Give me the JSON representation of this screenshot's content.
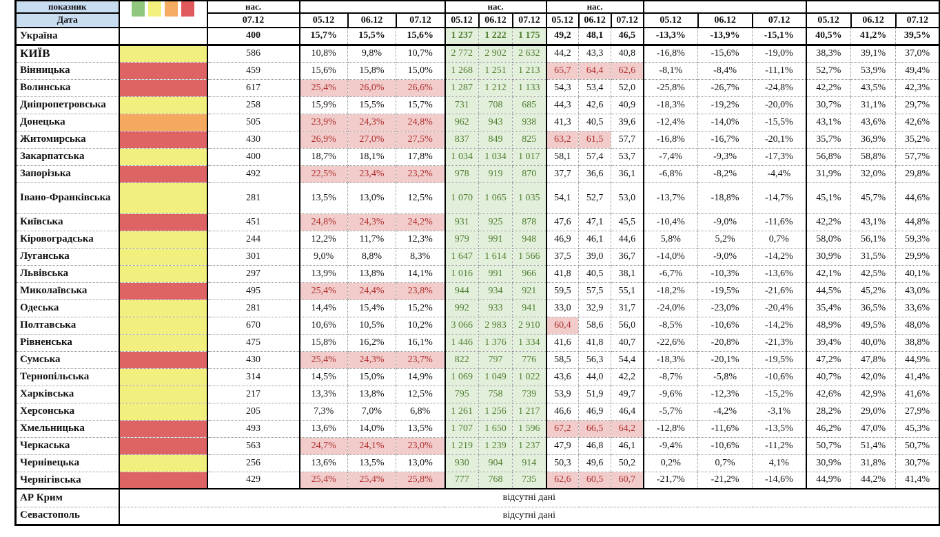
{
  "header": {
    "indicator_label": "показник",
    "date_label": "Дата",
    "nas": "нас.",
    "big_date": "07.12",
    "dates": [
      "05.12",
      "06.12",
      "07.12"
    ]
  },
  "legend_colors": {
    "green": "#8FC87D",
    "yellow": "#F4F07E",
    "orange": "#F5AC62",
    "red": "#E0595C"
  },
  "status_colors": {
    "yellow": "#F1EF7D",
    "red": "#DE6365",
    "orange": "#F5A95F",
    "highlight_pink": "#F1CCCA",
    "green_bg": "#E2EFDA",
    "header_blue": "#C9DDF1"
  },
  "no_data_text": "відсутні дані",
  "rows": [
    {
      "name": "Україна",
      "color": "white",
      "total": true,
      "big": "400",
      "p1": [
        "15,7%",
        "15,5%",
        "15,6%"
      ],
      "p1h": false,
      "gr": [
        "1 237",
        "1 222",
        "1 175"
      ],
      "mid": [
        "49,2",
        "48,1",
        "46,5"
      ],
      "midh": [
        false,
        false,
        false
      ],
      "neg": [
        "-13,3%",
        "-13,9%",
        "-15,1%"
      ],
      "last": [
        "40,5%",
        "41,2%",
        "39,5%"
      ]
    },
    {
      "name": "КИЇВ",
      "caps": true,
      "color": "yellow",
      "big": "586",
      "p1": [
        "10,8%",
        "9,8%",
        "10,7%"
      ],
      "p1h": false,
      "gr": [
        "2 772",
        "2 902",
        "2 632"
      ],
      "mid": [
        "44,2",
        "43,3",
        "40,8"
      ],
      "midh": [
        false,
        false,
        false
      ],
      "neg": [
        "-16,8%",
        "-15,6%",
        "-19,0%"
      ],
      "last": [
        "38,3%",
        "39,1%",
        "37,0%"
      ]
    },
    {
      "name": "Вінницька",
      "color": "red",
      "big": "459",
      "p1": [
        "15,6%",
        "15,8%",
        "15,0%"
      ],
      "p1h": false,
      "gr": [
        "1 268",
        "1 251",
        "1 213"
      ],
      "mid": [
        "65,7",
        "64,4",
        "62,6"
      ],
      "midh": [
        true,
        true,
        true
      ],
      "neg": [
        "-8,1%",
        "-8,4%",
        "-11,1%"
      ],
      "last": [
        "52,7%",
        "53,9%",
        "49,4%"
      ]
    },
    {
      "name": "Волинська",
      "color": "red",
      "big": "617",
      "p1": [
        "25,4%",
        "26,0%",
        "26,6%"
      ],
      "p1h": true,
      "gr": [
        "1 287",
        "1 212",
        "1 133"
      ],
      "mid": [
        "54,3",
        "53,4",
        "52,0"
      ],
      "midh": [
        false,
        false,
        false
      ],
      "neg": [
        "-25,8%",
        "-26,7%",
        "-24,8%"
      ],
      "last": [
        "42,2%",
        "43,5%",
        "42,3%"
      ]
    },
    {
      "name": "Дніпропетровська",
      "color": "yellow",
      "big": "258",
      "p1": [
        "15,9%",
        "15,5%",
        "15,7%"
      ],
      "p1h": false,
      "gr": [
        "731",
        "708",
        "685"
      ],
      "mid": [
        "44,3",
        "42,6",
        "40,9"
      ],
      "midh": [
        false,
        false,
        false
      ],
      "neg": [
        "-18,3%",
        "-19,2%",
        "-20,0%"
      ],
      "last": [
        "30,7%",
        "31,1%",
        "29,7%"
      ]
    },
    {
      "name": "Донецька",
      "color": "orange",
      "big": "505",
      "p1": [
        "23,9%",
        "24,3%",
        "24,8%"
      ],
      "p1h": true,
      "gr": [
        "962",
        "943",
        "938"
      ],
      "mid": [
        "41,3",
        "40,5",
        "39,6"
      ],
      "midh": [
        false,
        false,
        false
      ],
      "neg": [
        "-12,4%",
        "-14,0%",
        "-15,5%"
      ],
      "last": [
        "43,1%",
        "43,6%",
        "42,6%"
      ]
    },
    {
      "name": "Житомирська",
      "color": "red",
      "big": "430",
      "p1": [
        "26,9%",
        "27,0%",
        "27,5%"
      ],
      "p1h": true,
      "gr": [
        "837",
        "849",
        "825"
      ],
      "mid": [
        "63,2",
        "61,5",
        "57,7"
      ],
      "midh": [
        true,
        true,
        false
      ],
      "neg": [
        "-16,8%",
        "-16,7%",
        "-20,1%"
      ],
      "last": [
        "35,7%",
        "36,9%",
        "35,2%"
      ]
    },
    {
      "name": "Закарпатська",
      "color": "yellow",
      "big": "400",
      "p1": [
        "18,7%",
        "18,1%",
        "17,8%"
      ],
      "p1h": false,
      "gr": [
        "1 034",
        "1 034",
        "1 017"
      ],
      "mid": [
        "58,1",
        "57,4",
        "53,7"
      ],
      "midh": [
        false,
        false,
        false
      ],
      "neg": [
        "-7,4%",
        "-9,3%",
        "-17,3%"
      ],
      "last": [
        "56,8%",
        "58,8%",
        "57,7%"
      ]
    },
    {
      "name": "Запорізька",
      "color": "red",
      "big": "492",
      "p1": [
        "22,5%",
        "23,4%",
        "23,2%"
      ],
      "p1h": true,
      "gr": [
        "978",
        "919",
        "870"
      ],
      "mid": [
        "37,7",
        "36,6",
        "36,1"
      ],
      "midh": [
        false,
        false,
        false
      ],
      "neg": [
        "-6,8%",
        "-8,2%",
        "-4,4%"
      ],
      "last": [
        "31,9%",
        "32,0%",
        "29,8%"
      ]
    },
    {
      "name": "Івано-Франківська",
      "tall": true,
      "color": "yellow",
      "big": "281",
      "p1": [
        "13,5%",
        "13,0%",
        "12,5%"
      ],
      "p1h": false,
      "gr": [
        "1 070",
        "1 065",
        "1 035"
      ],
      "mid": [
        "54,1",
        "52,7",
        "53,0"
      ],
      "midh": [
        false,
        false,
        false
      ],
      "neg": [
        "-13,7%",
        "-18,8%",
        "-14,7%"
      ],
      "last": [
        "45,1%",
        "45,7%",
        "44,6%"
      ]
    },
    {
      "name": "Київська",
      "color": "red",
      "big": "451",
      "p1": [
        "24,8%",
        "24,3%",
        "24,2%"
      ],
      "p1h": true,
      "gr": [
        "931",
        "925",
        "878"
      ],
      "mid": [
        "47,6",
        "47,1",
        "45,5"
      ],
      "midh": [
        false,
        false,
        false
      ],
      "neg": [
        "-10,4%",
        "-9,0%",
        "-11,6%"
      ],
      "last": [
        "42,2%",
        "43,1%",
        "44,8%"
      ]
    },
    {
      "name": "Кіровоградська",
      "color": "yellow",
      "big": "244",
      "p1": [
        "12,2%",
        "11,7%",
        "12,3%"
      ],
      "p1h": false,
      "gr": [
        "979",
        "991",
        "948"
      ],
      "mid": [
        "46,9",
        "46,1",
        "44,6"
      ],
      "midh": [
        false,
        false,
        false
      ],
      "neg": [
        "5,8%",
        "5,2%",
        "0,7%"
      ],
      "last": [
        "58,0%",
        "56,1%",
        "59,3%"
      ]
    },
    {
      "name": "Луганська",
      "color": "yellow",
      "big": "301",
      "p1": [
        "9,0%",
        "8,8%",
        "8,3%"
      ],
      "p1h": false,
      "gr": [
        "1 647",
        "1 614",
        "1 566"
      ],
      "mid": [
        "37,5",
        "39,0",
        "36,7"
      ],
      "midh": [
        false,
        false,
        false
      ],
      "neg": [
        "-14,0%",
        "-9,0%",
        "-14,2%"
      ],
      "last": [
        "30,9%",
        "31,5%",
        "29,9%"
      ]
    },
    {
      "name": "Львівська",
      "color": "yellow",
      "big": "297",
      "p1": [
        "13,9%",
        "13,8%",
        "14,1%"
      ],
      "p1h": false,
      "gr": [
        "1 016",
        "991",
        "966"
      ],
      "mid": [
        "41,8",
        "40,5",
        "38,1"
      ],
      "midh": [
        false,
        false,
        false
      ],
      "neg": [
        "-6,7%",
        "-10,3%",
        "-13,6%"
      ],
      "last": [
        "42,1%",
        "42,5%",
        "40,1%"
      ]
    },
    {
      "name": "Миколаївська",
      "color": "red",
      "big": "495",
      "p1": [
        "25,4%",
        "24,4%",
        "23,8%"
      ],
      "p1h": true,
      "gr": [
        "944",
        "934",
        "921"
      ],
      "mid": [
        "59,5",
        "57,5",
        "55,1"
      ],
      "midh": [
        false,
        false,
        false
      ],
      "neg": [
        "-18,2%",
        "-19,5%",
        "-21,6%"
      ],
      "last": [
        "44,5%",
        "45,2%",
        "43,0%"
      ]
    },
    {
      "name": "Одеська",
      "color": "yellow",
      "big": "281",
      "p1": [
        "14,4%",
        "15,4%",
        "15,2%"
      ],
      "p1h": false,
      "gr": [
        "992",
        "933",
        "941"
      ],
      "mid": [
        "33,0",
        "32,9",
        "31,7"
      ],
      "midh": [
        false,
        false,
        false
      ],
      "neg": [
        "-24,0%",
        "-23,0%",
        "-20,4%"
      ],
      "last": [
        "35,4%",
        "36,5%",
        "33,6%"
      ]
    },
    {
      "name": "Полтавська",
      "color": "yellow",
      "big": "670",
      "p1": [
        "10,6%",
        "10,5%",
        "10,2%"
      ],
      "p1h": false,
      "gr": [
        "3 066",
        "2 983",
        "2 910"
      ],
      "mid": [
        "60,4",
        "58,6",
        "56,0"
      ],
      "midh": [
        true,
        false,
        false
      ],
      "neg": [
        "-8,5%",
        "-10,6%",
        "-14,2%"
      ],
      "last": [
        "48,9%",
        "49,5%",
        "48,0%"
      ]
    },
    {
      "name": "Рівненська",
      "color": "yellow",
      "big": "475",
      "p1": [
        "15,8%",
        "16,2%",
        "16,1%"
      ],
      "p1h": false,
      "gr": [
        "1 446",
        "1 376",
        "1 334"
      ],
      "mid": [
        "41,6",
        "41,8",
        "40,7"
      ],
      "midh": [
        false,
        false,
        false
      ],
      "neg": [
        "-22,6%",
        "-20,8%",
        "-21,3%"
      ],
      "last": [
        "39,4%",
        "40,0%",
        "38,8%"
      ]
    },
    {
      "name": "Сумська",
      "color": "red",
      "big": "430",
      "p1": [
        "25,4%",
        "24,3%",
        "23,7%"
      ],
      "p1h": true,
      "gr": [
        "822",
        "797",
        "776"
      ],
      "mid": [
        "58,5",
        "56,3",
        "54,4"
      ],
      "midh": [
        false,
        false,
        false
      ],
      "neg": [
        "-18,3%",
        "-20,1%",
        "-19,5%"
      ],
      "last": [
        "47,2%",
        "47,8%",
        "44,9%"
      ]
    },
    {
      "name": "Тернопільська",
      "color": "yellow",
      "big": "314",
      "p1": [
        "14,5%",
        "15,0%",
        "14,9%"
      ],
      "p1h": false,
      "gr": [
        "1 069",
        "1 049",
        "1 022"
      ],
      "mid": [
        "43,6",
        "44,0",
        "42,2"
      ],
      "midh": [
        false,
        false,
        false
      ],
      "neg": [
        "-8,7%",
        "-5,8%",
        "-10,6%"
      ],
      "last": [
        "40,7%",
        "42,0%",
        "41,4%"
      ]
    },
    {
      "name": "Харківська",
      "color": "yellow",
      "big": "217",
      "p1": [
        "13,3%",
        "13,8%",
        "12,5%"
      ],
      "p1h": false,
      "gr": [
        "795",
        "758",
        "739"
      ],
      "mid": [
        "53,9",
        "51,9",
        "49,7"
      ],
      "midh": [
        false,
        false,
        false
      ],
      "neg": [
        "-9,6%",
        "-12,3%",
        "-15,2%"
      ],
      "last": [
        "42,6%",
        "42,9%",
        "41,6%"
      ]
    },
    {
      "name": "Херсонська",
      "color": "yellow",
      "big": "205",
      "p1": [
        "7,3%",
        "7,0%",
        "6,8%"
      ],
      "p1h": false,
      "gr": [
        "1 261",
        "1 256",
        "1 217"
      ],
      "mid": [
        "46,6",
        "46,9",
        "46,4"
      ],
      "midh": [
        false,
        false,
        false
      ],
      "neg": [
        "-5,7%",
        "-4,2%",
        "-3,1%"
      ],
      "last": [
        "28,2%",
        "29,0%",
        "27,9%"
      ]
    },
    {
      "name": "Хмельницька",
      "color": "red",
      "big": "493",
      "p1": [
        "13,6%",
        "14,0%",
        "13,5%"
      ],
      "p1h": false,
      "gr": [
        "1 707",
        "1 650",
        "1 596"
      ],
      "mid": [
        "67,2",
        "66,5",
        "64,2"
      ],
      "midh": [
        true,
        true,
        true
      ],
      "neg": [
        "-12,8%",
        "-11,6%",
        "-13,5%"
      ],
      "last": [
        "46,2%",
        "47,0%",
        "45,3%"
      ]
    },
    {
      "name": "Черкаська",
      "color": "red",
      "big": "563",
      "p1": [
        "24,7%",
        "24,1%",
        "23,0%"
      ],
      "p1h": true,
      "gr": [
        "1 219",
        "1 239",
        "1 237"
      ],
      "mid": [
        "47,9",
        "46,8",
        "46,1"
      ],
      "midh": [
        false,
        false,
        false
      ],
      "neg": [
        "-9,4%",
        "-10,6%",
        "-11,2%"
      ],
      "last": [
        "50,7%",
        "51,4%",
        "50,7%"
      ]
    },
    {
      "name": "Чернівецька",
      "color": "yellow",
      "big": "256",
      "p1": [
        "13,6%",
        "13,5%",
        "13,0%"
      ],
      "p1h": false,
      "gr": [
        "930",
        "904",
        "914"
      ],
      "mid": [
        "50,3",
        "49,6",
        "50,2"
      ],
      "midh": [
        false,
        false,
        false
      ],
      "neg": [
        "0,2%",
        "0,7%",
        "4,1%"
      ],
      "last": [
        "30,9%",
        "31,8%",
        "30,7%"
      ]
    },
    {
      "name": "Чернігівська",
      "color": "red",
      "big": "429",
      "p1": [
        "25,4%",
        "25,4%",
        "25,8%"
      ],
      "p1h": true,
      "gr": [
        "777",
        "768",
        "735"
      ],
      "mid": [
        "62,6",
        "60,5",
        "60,7"
      ],
      "midh": [
        true,
        true,
        true
      ],
      "neg": [
        "-21,7%",
        "-21,2%",
        "-14,6%"
      ],
      "last": [
        "44,9%",
        "44,2%",
        "41,4%"
      ]
    }
  ],
  "no_data_rows": [
    {
      "name": "АР Крим"
    },
    {
      "name": "Севастополь"
    }
  ]
}
